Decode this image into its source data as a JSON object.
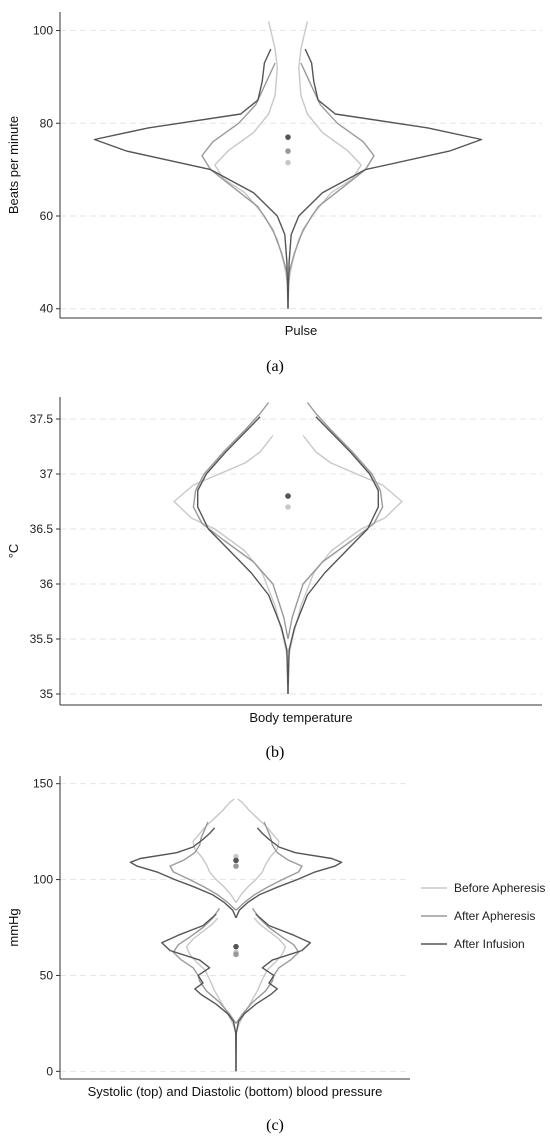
{
  "captions": [
    "(a)",
    "(b)",
    "(c)"
  ],
  "colors": {
    "before": "#c8c8c8",
    "after_apheresis": "#9a9a9a",
    "after_infusion": "#555555",
    "grid": "#e6e6e6",
    "axis": "#333333"
  },
  "legend": {
    "placement": "right",
    "entries": [
      "Before Apheresis",
      "After Apheresis",
      "After Infusion"
    ]
  },
  "chart_data": [
    {
      "type": "violin",
      "ylabel": "Beats per minute",
      "xlabel": "Pulse",
      "ylim": [
        38,
        104
      ],
      "yticks": [
        40,
        60,
        80,
        100
      ],
      "ytick_labels": [
        "40",
        "60",
        "80",
        "100"
      ],
      "grid": true,
      "series": [
        {
          "name": "Before Apheresis",
          "median": 71.5,
          "range": [
            45,
            102
          ],
          "density": [
            [
              45,
              0
            ],
            [
              50,
              0.02
            ],
            [
              55,
              0.05
            ],
            [
              60,
              0.11
            ],
            [
              65,
              0.2
            ],
            [
              68,
              0.3
            ],
            [
              71,
              0.34
            ],
            [
              74,
              0.28
            ],
            [
              78,
              0.16
            ],
            [
              82,
              0.09
            ],
            [
              86,
              0.06
            ],
            [
              92,
              0.05
            ],
            [
              96,
              0.06
            ],
            [
              100,
              0.08
            ],
            [
              102,
              0.09
            ]
          ]
        },
        {
          "name": "After Apheresis",
          "median": 74,
          "range": [
            47,
            93
          ],
          "density": [
            [
              47,
              0
            ],
            [
              52,
              0.03
            ],
            [
              57,
              0.07
            ],
            [
              62,
              0.14
            ],
            [
              66,
              0.25
            ],
            [
              70,
              0.36
            ],
            [
              73,
              0.4
            ],
            [
              76,
              0.35
            ],
            [
              80,
              0.23
            ],
            [
              84,
              0.15
            ],
            [
              88,
              0.11
            ],
            [
              91,
              0.08
            ],
            [
              93,
              0.06
            ]
          ]
        },
        {
          "name": "After Infusion",
          "median": 77,
          "range": [
            40,
            96
          ],
          "density": [
            [
              40,
              0
            ],
            [
              50,
              0.005
            ],
            [
              56,
              0.015
            ],
            [
              60,
              0.05
            ],
            [
              65,
              0.16
            ],
            [
              70,
              0.36
            ],
            [
              74,
              0.75
            ],
            [
              76.5,
              0.9
            ],
            [
              79,
              0.65
            ],
            [
              82,
              0.22
            ],
            [
              85,
              0.14
            ],
            [
              89,
              0.12
            ],
            [
              93,
              0.11
            ],
            [
              96,
              0.08
            ]
          ]
        }
      ]
    },
    {
      "type": "violin",
      "ylabel": "°C",
      "xlabel": "Body temperature",
      "ylim": [
        34.9,
        37.7
      ],
      "yticks": [
        35,
        35.5,
        36,
        36.5,
        37,
        37.5
      ],
      "ytick_labels": [
        "35",
        "35.5",
        "36",
        "36.5",
        "37",
        "37.5"
      ],
      "grid": true,
      "series": [
        {
          "name": "Before Apheresis",
          "median": 36.7,
          "range": [
            35.3,
            37.35
          ],
          "density": [
            [
              35.3,
              0
            ],
            [
              35.5,
              0.02
            ],
            [
              35.8,
              0.06
            ],
            [
              36.1,
              0.12
            ],
            [
              36.3,
              0.2
            ],
            [
              36.5,
              0.34
            ],
            [
              36.6,
              0.45
            ],
            [
              36.75,
              0.53
            ],
            [
              36.9,
              0.44
            ],
            [
              37,
              0.32
            ],
            [
              37.1,
              0.2
            ],
            [
              37.2,
              0.13
            ],
            [
              37.35,
              0.07
            ]
          ]
        },
        {
          "name": "After Apheresis",
          "median": 36.8,
          "range": [
            35.5,
            37.65
          ],
          "density": [
            [
              35.5,
              0
            ],
            [
              35.7,
              0.02
            ],
            [
              36,
              0.07
            ],
            [
              36.2,
              0.16
            ],
            [
              36.4,
              0.3
            ],
            [
              36.55,
              0.4
            ],
            [
              36.7,
              0.44
            ],
            [
              36.85,
              0.43
            ],
            [
              37,
              0.39
            ],
            [
              37.2,
              0.3
            ],
            [
              37.4,
              0.2
            ],
            [
              37.55,
              0.13
            ],
            [
              37.65,
              0.09
            ]
          ]
        },
        {
          "name": "After Infusion",
          "median": 36.8,
          "range": [
            35.0,
            37.52
          ],
          "density": [
            [
              35,
              0
            ],
            [
              35.4,
              0.005
            ],
            [
              35.6,
              0.03
            ],
            [
              35.9,
              0.09
            ],
            [
              36.1,
              0.17
            ],
            [
              36.3,
              0.27
            ],
            [
              36.5,
              0.37
            ],
            [
              36.7,
              0.42
            ],
            [
              36.85,
              0.42
            ],
            [
              37,
              0.38
            ],
            [
              37.2,
              0.29
            ],
            [
              37.4,
              0.19
            ],
            [
              37.52,
              0.13
            ]
          ]
        }
      ]
    },
    {
      "type": "violin",
      "ylabel": "mmHg",
      "xlabel": "Systolic (top) and Diastolic (bottom) blood pressure",
      "ylim": [
        -4,
        154
      ],
      "yticks": [
        0,
        50,
        100,
        150
      ],
      "ytick_labels": [
        "0",
        "50",
        "100",
        "150"
      ],
      "grid": true,
      "series": [
        {
          "name": "Before Apheresis",
          "part": "systolic",
          "median": 112,
          "range": [
            88,
            142
          ],
          "density": [
            [
              88,
              0
            ],
            [
              92,
              0.03
            ],
            [
              96,
              0.07
            ],
            [
              100,
              0.12
            ],
            [
              104,
              0.16
            ],
            [
              108,
              0.18
            ],
            [
              112,
              0.21
            ],
            [
              116,
              0.25
            ],
            [
              120,
              0.26
            ],
            [
              124,
              0.22
            ],
            [
              128,
              0.18
            ],
            [
              132,
              0.13
            ],
            [
              136,
              0.08
            ],
            [
              140,
              0.04
            ],
            [
              142,
              0.01
            ]
          ]
        },
        {
          "name": "After Apheresis",
          "part": "systolic",
          "median": 107,
          "range": [
            84,
            130
          ],
          "density": [
            [
              84,
              0
            ],
            [
              88,
              0.05
            ],
            [
              92,
              0.11
            ],
            [
              96,
              0.19
            ],
            [
              100,
              0.28
            ],
            [
              104,
              0.38
            ],
            [
              107,
              0.4
            ],
            [
              110,
              0.32
            ],
            [
              114,
              0.25
            ],
            [
              118,
              0.22
            ],
            [
              122,
              0.21
            ],
            [
              126,
              0.19
            ],
            [
              130,
              0.17
            ]
          ]
        },
        {
          "name": "After Infusion",
          "part": "systolic",
          "median": 110,
          "range": [
            80,
            127
          ],
          "density": [
            [
              80,
              0
            ],
            [
              84,
              0.02
            ],
            [
              88,
              0.07
            ],
            [
              92,
              0.14
            ],
            [
              96,
              0.25
            ],
            [
              100,
              0.37
            ],
            [
              104,
              0.48
            ],
            [
              107,
              0.6
            ],
            [
              109,
              0.64
            ],
            [
              111,
              0.58
            ],
            [
              114,
              0.36
            ],
            [
              117,
              0.26
            ],
            [
              121,
              0.2
            ],
            [
              124,
              0.16
            ],
            [
              127,
              0.13
            ]
          ]
        },
        {
          "name": "Before Apheresis",
          "part": "diastolic",
          "median": 62,
          "range": [
            20,
            80
          ],
          "density": [
            [
              20,
              0
            ],
            [
              25,
              0.02
            ],
            [
              30,
              0.05
            ],
            [
              36,
              0.09
            ],
            [
              42,
              0.13
            ],
            [
              48,
              0.16
            ],
            [
              53,
              0.19
            ],
            [
              57,
              0.24
            ],
            [
              61,
              0.28
            ],
            [
              65,
              0.3
            ],
            [
              69,
              0.26
            ],
            [
              73,
              0.2
            ],
            [
              77,
              0.14
            ],
            [
              80,
              0.11
            ]
          ]
        },
        {
          "name": "After Apheresis",
          "part": "diastolic",
          "median": 61,
          "range": [
            25,
            85
          ],
          "density": [
            [
              25,
              0
            ],
            [
              30,
              0.04
            ],
            [
              36,
              0.1
            ],
            [
              42,
              0.18
            ],
            [
              47,
              0.22
            ],
            [
              50,
              0.23
            ],
            [
              54,
              0.26
            ],
            [
              58,
              0.33
            ],
            [
              62,
              0.38
            ],
            [
              66,
              0.35
            ],
            [
              70,
              0.28
            ],
            [
              75,
              0.2
            ],
            [
              80,
              0.14
            ],
            [
              85,
              0.1
            ]
          ]
        },
        {
          "name": "After Infusion",
          "part": "diastolic",
          "median": 65,
          "range": [
            0,
            82
          ],
          "density": [
            [
              0,
              0
            ],
            [
              20,
              0.002
            ],
            [
              26,
              0.015
            ],
            [
              30,
              0.05
            ],
            [
              35,
              0.12
            ],
            [
              40,
              0.21
            ],
            [
              43,
              0.25
            ],
            [
              46,
              0.2
            ],
            [
              50,
              0.23
            ],
            [
              54,
              0.16
            ],
            [
              58,
              0.22
            ],
            [
              63,
              0.4
            ],
            [
              67,
              0.45
            ],
            [
              71,
              0.35
            ],
            [
              76,
              0.2
            ],
            [
              82,
              0.12
            ]
          ]
        }
      ]
    }
  ]
}
